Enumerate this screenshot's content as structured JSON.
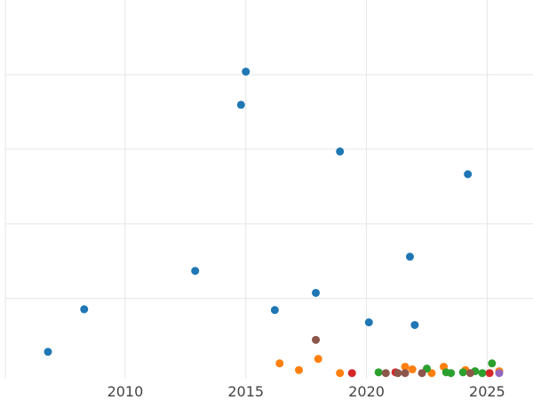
{
  "chart_data": {
    "type": "scatter",
    "title": "",
    "xlabel": "",
    "ylabel": "",
    "xlim": [
      2006.8,
      2026.9
    ],
    "ylim": [
      -0.15,
      10
    ],
    "x_ticks": [
      2010,
      2015,
      2020,
      2025
    ],
    "x_tick_labels": [
      "2010",
      "2015",
      "2020",
      "2025"
    ],
    "y_gridlines": [
      2,
      4,
      6,
      8
    ],
    "grid": true,
    "legend": "none",
    "series": [
      {
        "color": "#1f77b4",
        "points": [
          {
            "x": 2006.8,
            "y": 0.57
          },
          {
            "x": 2008.3,
            "y": 1.71
          },
          {
            "x": 2012.9,
            "y": 2.74
          },
          {
            "x": 2014.8,
            "y": 7.19
          },
          {
            "x": 2015.0,
            "y": 8.08
          },
          {
            "x": 2016.2,
            "y": 1.69
          },
          {
            "x": 2017.9,
            "y": 2.15
          },
          {
            "x": 2018.9,
            "y": 5.94
          },
          {
            "x": 2020.1,
            "y": 1.36
          },
          {
            "x": 2021.8,
            "y": 3.12
          },
          {
            "x": 2022.0,
            "y": 1.29
          },
          {
            "x": 2024.2,
            "y": 5.33
          }
        ]
      },
      {
        "color": "#ff7f0e",
        "points": [
          {
            "x": 2016.4,
            "y": 0.26
          },
          {
            "x": 2017.2,
            "y": 0.08
          },
          {
            "x": 2018.0,
            "y": 0.38
          },
          {
            "x": 2018.9,
            "y": 0.0
          },
          {
            "x": 2021.6,
            "y": 0.17
          },
          {
            "x": 2021.9,
            "y": 0.1
          },
          {
            "x": 2022.7,
            "y": 0.0
          },
          {
            "x": 2023.2,
            "y": 0.17
          },
          {
            "x": 2024.1,
            "y": 0.08
          },
          {
            "x": 2025.5,
            "y": 0.05
          }
        ]
      },
      {
        "color": "#2ca02c",
        "points": [
          {
            "x": 2020.5,
            "y": 0.02
          },
          {
            "x": 2022.5,
            "y": 0.12
          },
          {
            "x": 2023.3,
            "y": 0.02
          },
          {
            "x": 2023.5,
            "y": 0.0
          },
          {
            "x": 2024.0,
            "y": 0.02
          },
          {
            "x": 2024.5,
            "y": 0.05
          },
          {
            "x": 2024.8,
            "y": 0.0
          },
          {
            "x": 2025.2,
            "y": 0.26
          }
        ]
      },
      {
        "color": "#d62728",
        "points": [
          {
            "x": 2019.4,
            "y": 0.0
          },
          {
            "x": 2021.2,
            "y": 0.02
          },
          {
            "x": 2025.1,
            "y": 0.0
          }
        ]
      },
      {
        "color": "#8c564b",
        "points": [
          {
            "x": 2017.9,
            "y": 0.89
          },
          {
            "x": 2020.8,
            "y": 0.0
          },
          {
            "x": 2021.3,
            "y": 0.0
          },
          {
            "x": 2021.6,
            "y": 0.0
          },
          {
            "x": 2022.3,
            "y": 0.0
          },
          {
            "x": 2024.3,
            "y": 0.0
          }
        ]
      },
      {
        "color": "#9467bd",
        "points": [
          {
            "x": 2025.5,
            "y": 0.0
          }
        ]
      }
    ]
  }
}
